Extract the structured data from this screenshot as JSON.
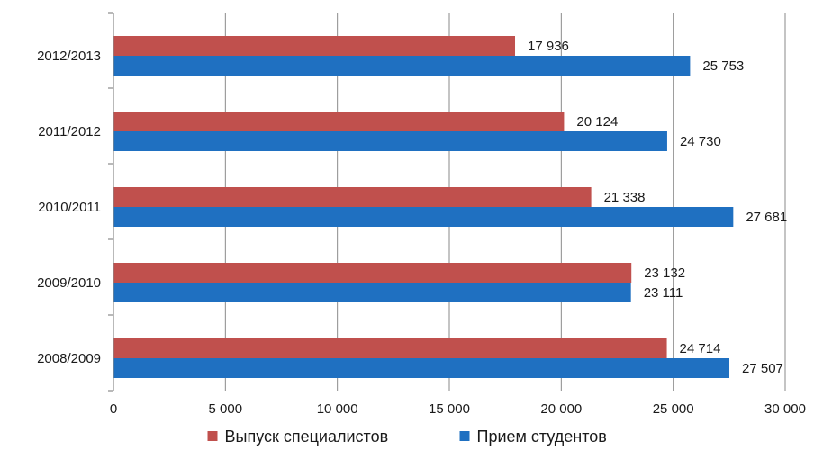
{
  "chart_data": {
    "type": "bar",
    "orientation": "horizontal",
    "categories": [
      "2012/2013",
      "2011/2012",
      "2010/2011",
      "2009/2010",
      "2008/2009"
    ],
    "series": [
      {
        "name": "Выпуск специалистов",
        "color": "#c0504d",
        "values": [
          17936,
          20124,
          21338,
          23132,
          24714
        ],
        "labels": [
          "17 936",
          "20 124",
          "21 338",
          "23 132",
          "24 714"
        ]
      },
      {
        "name": "Прием студентов",
        "color": "#1f70c1",
        "values": [
          25753,
          24730,
          27681,
          23111,
          27507
        ],
        "labels": [
          "25 753",
          "24 730",
          "27 681",
          "23 111",
          "27 507"
        ]
      }
    ],
    "xlim": [
      0,
      30000
    ],
    "xticks": [
      0,
      5000,
      10000,
      15000,
      20000,
      25000,
      30000
    ],
    "xtick_labels": [
      "0",
      "5 000",
      "10 000",
      "15 000",
      "20 000",
      "25 000",
      "30 000"
    ],
    "grid": "vertical",
    "legend": "bottom"
  }
}
